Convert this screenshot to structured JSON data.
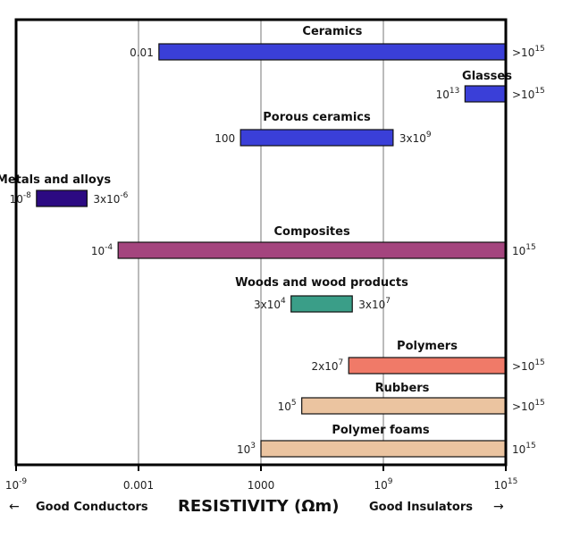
{
  "chart_data": {
    "type": "bar",
    "orientation": "horizontal-range",
    "xscale": "log",
    "xlim": [
      1e-09,
      1000000000000000.0
    ],
    "xlabel": "RESISTIVITY (Ωm)",
    "xlabel_left": "Good Conductors",
    "xlabel_right": "Good Insulators",
    "ticks": [
      {
        "value": 1e-09,
        "base": "10",
        "exp": "-9"
      },
      {
        "value": 0.001,
        "base": "0.001",
        "exp": ""
      },
      {
        "value": 1000,
        "base": "1000",
        "exp": ""
      },
      {
        "value": 1000000000.0,
        "base": "10",
        "exp": "9"
      },
      {
        "value": 1000000000000000.0,
        "base": "10",
        "exp": "15"
      }
    ],
    "grid": true,
    "series": [
      {
        "name": "Ceramics",
        "min": 0.01,
        "max": 1000000000000000.0,
        "min_label": {
          "base": "0.01",
          "exp": ""
        },
        "max_label": {
          "base": ">10",
          "exp": "15"
        },
        "color": "#3a3fd8"
      },
      {
        "name": "Glasses",
        "min": 10000000000000.0,
        "max": 1000000000000000.0,
        "min_label": {
          "base": "10",
          "exp": "13"
        },
        "max_label": {
          "base": ">10",
          "exp": "15"
        },
        "color": "#3a3fd8"
      },
      {
        "name": "Porous ceramics",
        "min": 100,
        "max": 3000000000.0,
        "min_label": {
          "base": "100",
          "exp": ""
        },
        "max_label": {
          "base": "3x10",
          "exp": "9"
        },
        "color": "#3a3fd8"
      },
      {
        "name": "Metals and alloys",
        "min": 1e-08,
        "max": 3e-06,
        "min_label": {
          "base": "10",
          "exp": "-8"
        },
        "max_label": {
          "base": "3x10",
          "exp": "-6"
        },
        "color": "#2c0a82"
      },
      {
        "name": "Composites",
        "min": 0.0001,
        "max": 1000000000000000.0,
        "min_label": {
          "base": "10",
          "exp": "-4"
        },
        "max_label": {
          "base": "10",
          "exp": "15"
        },
        "color": "#a4457e"
      },
      {
        "name": "Woods and wood products",
        "min": 30000.0,
        "max": 30000000.0,
        "min_label": {
          "base": "3x10",
          "exp": "4"
        },
        "max_label": {
          "base": "3x10",
          "exp": "7"
        },
        "color": "#3a9e88"
      },
      {
        "name": "Polymers",
        "min": 20000000.0,
        "max": 1000000000000000.0,
        "min_label": {
          "base": "2x10",
          "exp": "7"
        },
        "max_label": {
          "base": ">10",
          "exp": "15"
        },
        "color": "#f07a68"
      },
      {
        "name": "Rubbers",
        "min": 100000.0,
        "max": 1000000000000000.0,
        "min_label": {
          "base": "10",
          "exp": "5"
        },
        "max_label": {
          "base": ">10",
          "exp": "15"
        },
        "color": "#ebc4a0"
      },
      {
        "name": "Polymer foams",
        "min": 1000,
        "max": 1000000000000000.0,
        "min_label": {
          "base": "10",
          "exp": "3"
        },
        "max_label": {
          "base": "10",
          "exp": "15"
        },
        "color": "#ebc4a0"
      }
    ]
  }
}
